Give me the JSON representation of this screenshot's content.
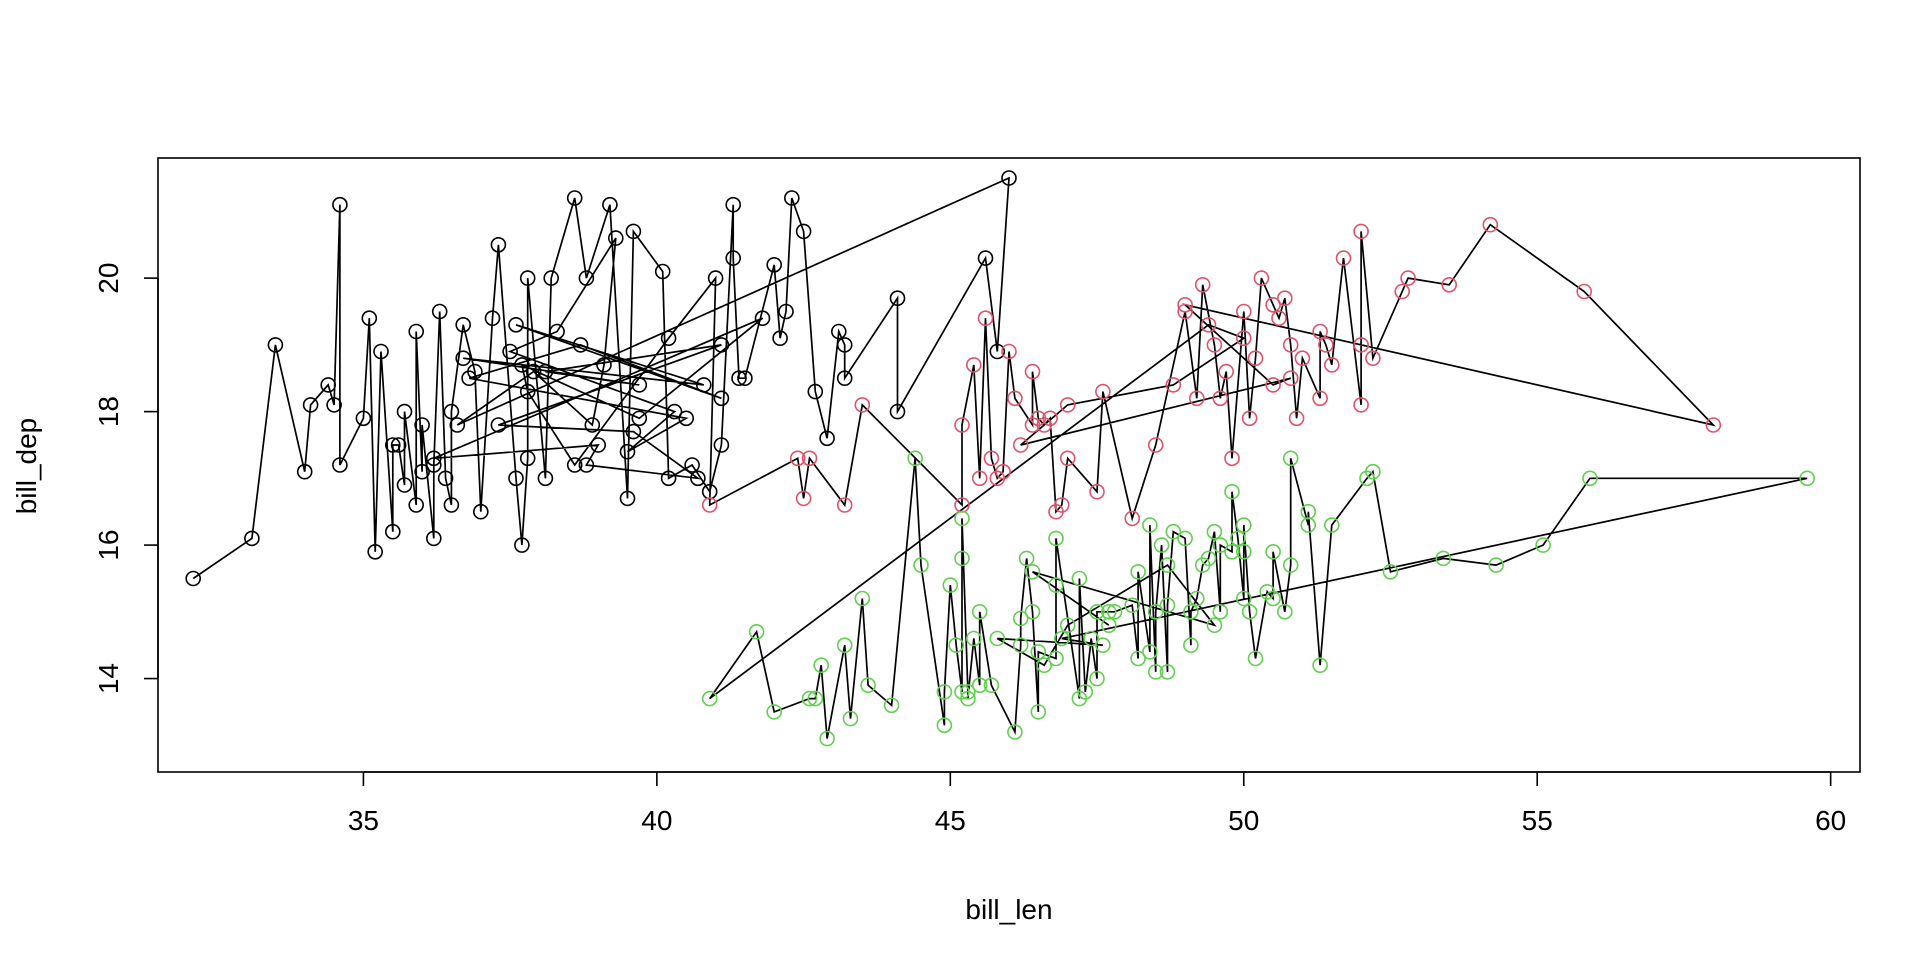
{
  "chart_data": {
    "type": "scatter",
    "title": "",
    "xlabel": "bill_len",
    "ylabel": "bill_dep",
    "xlim": [
      31.5,
      60.5
    ],
    "ylim": [
      12.6,
      21.8
    ],
    "x_ticks": [
      35,
      40,
      45,
      50,
      55,
      60
    ],
    "y_ticks": [
      14,
      16,
      18,
      20
    ],
    "grid": false,
    "legend": "none",
    "connect_points_in_order": true,
    "line_color": "#000000",
    "series": [
      {
        "color": "#000000",
        "points": [
          [
            32.1,
            15.5
          ],
          [
            33.1,
            16.1
          ],
          [
            33.5,
            19.0
          ],
          [
            34.0,
            17.1
          ],
          [
            34.1,
            18.1
          ],
          [
            34.4,
            18.4
          ],
          [
            34.5,
            18.1
          ],
          [
            34.6,
            21.1
          ],
          [
            34.6,
            17.2
          ],
          [
            35.0,
            17.9
          ],
          [
            35.1,
            19.4
          ],
          [
            35.2,
            15.9
          ],
          [
            35.3,
            18.9
          ],
          [
            35.5,
            16.2
          ],
          [
            35.5,
            17.5
          ],
          [
            35.6,
            17.5
          ],
          [
            35.7,
            16.9
          ],
          [
            35.7,
            18.0
          ],
          [
            35.9,
            16.6
          ],
          [
            35.9,
            19.2
          ],
          [
            36.0,
            17.1
          ],
          [
            36.0,
            17.8
          ],
          [
            36.2,
            16.1
          ],
          [
            36.2,
            17.2
          ],
          [
            36.3,
            19.5
          ],
          [
            36.4,
            17.0
          ],
          [
            36.5,
            16.6
          ],
          [
            36.5,
            18.0
          ],
          [
            36.7,
            19.3
          ],
          [
            36.9,
            18.6
          ],
          [
            37.0,
            16.5
          ],
          [
            37.2,
            19.4
          ],
          [
            37.3,
            20.5
          ],
          [
            37.6,
            17.0
          ],
          [
            37.7,
            16.0
          ],
          [
            37.8,
            17.3
          ],
          [
            37.8,
            20.0
          ],
          [
            38.1,
            17.0
          ],
          [
            38.2,
            20.0
          ],
          [
            38.6,
            21.2
          ],
          [
            38.8,
            20.0
          ],
          [
            39.2,
            21.1
          ],
          [
            39.5,
            16.7
          ],
          [
            39.6,
            20.7
          ],
          [
            40.1,
            20.1
          ],
          [
            40.2,
            17.0
          ],
          [
            40.6,
            17.2
          ],
          [
            40.9,
            16.8
          ],
          [
            41.1,
            17.5
          ],
          [
            41.3,
            21.1
          ],
          [
            41.3,
            20.3
          ],
          [
            41.4,
            18.5
          ],
          [
            41.5,
            18.5
          ],
          [
            42.0,
            20.2
          ],
          [
            42.1,
            19.1
          ],
          [
            42.2,
            19.5
          ],
          [
            42.3,
            21.2
          ],
          [
            42.5,
            20.7
          ],
          [
            42.7,
            18.3
          ],
          [
            42.9,
            17.6
          ],
          [
            43.1,
            19.2
          ],
          [
            43.2,
            19.0
          ],
          [
            43.2,
            18.5
          ],
          [
            44.1,
            19.7
          ],
          [
            44.1,
            18.0
          ],
          [
            45.6,
            20.3
          ],
          [
            45.8,
            18.9
          ],
          [
            46.0,
            21.5
          ],
          [
            36.6,
            17.8
          ],
          [
            37.9,
            18.6
          ],
          [
            38.9,
            17.8
          ],
          [
            39.1,
            18.7
          ],
          [
            39.3,
            20.6
          ],
          [
            38.3,
            19.2
          ],
          [
            37.5,
            18.9
          ],
          [
            40.3,
            18.0
          ],
          [
            39.5,
            17.4
          ],
          [
            40.5,
            17.9
          ],
          [
            36.8,
            18.5
          ],
          [
            38.7,
            19.0
          ],
          [
            41.1,
            18.2
          ],
          [
            37.6,
            19.3
          ],
          [
            40.8,
            18.4
          ],
          [
            36.7,
            18.8
          ],
          [
            39.7,
            18.4
          ],
          [
            38.1,
            18.6
          ],
          [
            41.1,
            19.0
          ],
          [
            37.3,
            17.8
          ],
          [
            39.6,
            17.7
          ],
          [
            40.7,
            17.0
          ],
          [
            38.8,
            17.2
          ],
          [
            39.0,
            17.5
          ],
          [
            36.2,
            17.3
          ],
          [
            41.8,
            19.4
          ],
          [
            39.7,
            17.9
          ],
          [
            37.7,
            18.7
          ],
          [
            37.8,
            18.3
          ],
          [
            38.6,
            17.2
          ],
          [
            40.2,
            19.1
          ],
          [
            41.0,
            20.0
          ]
        ]
      },
      {
        "color": "#DF536B",
        "points": [
          [
            40.9,
            16.6
          ],
          [
            42.4,
            17.3
          ],
          [
            42.5,
            16.7
          ],
          [
            42.6,
            17.3
          ],
          [
            43.2,
            16.6
          ],
          [
            43.5,
            18.1
          ],
          [
            45.2,
            16.6
          ],
          [
            45.2,
            17.8
          ],
          [
            45.4,
            18.7
          ],
          [
            45.5,
            17.0
          ],
          [
            45.6,
            19.4
          ],
          [
            45.7,
            17.3
          ],
          [
            45.8,
            17.0
          ],
          [
            45.9,
            17.1
          ],
          [
            46.0,
            18.9
          ],
          [
            46.1,
            18.2
          ],
          [
            46.4,
            17.8
          ],
          [
            46.4,
            18.6
          ],
          [
            46.5,
            17.9
          ],
          [
            46.6,
            17.8
          ],
          [
            46.7,
            17.9
          ],
          [
            46.8,
            16.5
          ],
          [
            46.9,
            16.6
          ],
          [
            47.0,
            17.3
          ],
          [
            47.5,
            16.8
          ],
          [
            47.6,
            18.3
          ],
          [
            48.1,
            16.4
          ],
          [
            48.5,
            17.5
          ],
          [
            49.0,
            19.5
          ],
          [
            49.2,
            18.2
          ],
          [
            49.3,
            19.9
          ],
          [
            49.5,
            19.0
          ],
          [
            49.6,
            18.2
          ],
          [
            49.7,
            18.6
          ],
          [
            49.8,
            17.3
          ],
          [
            50.0,
            19.5
          ],
          [
            50.1,
            17.9
          ],
          [
            50.2,
            18.8
          ],
          [
            50.3,
            20.0
          ],
          [
            50.5,
            19.6
          ],
          [
            50.6,
            19.4
          ],
          [
            50.7,
            19.7
          ],
          [
            50.8,
            19.0
          ],
          [
            50.9,
            17.9
          ],
          [
            51.0,
            18.8
          ],
          [
            51.3,
            18.2
          ],
          [
            51.3,
            19.2
          ],
          [
            51.4,
            19.0
          ],
          [
            51.5,
            18.7
          ],
          [
            51.7,
            20.3
          ],
          [
            52.0,
            18.1
          ],
          [
            52.0,
            19.0
          ],
          [
            52.0,
            20.7
          ],
          [
            52.2,
            18.8
          ],
          [
            52.7,
            19.8
          ],
          [
            52.8,
            20.0
          ],
          [
            53.5,
            19.9
          ],
          [
            54.2,
            20.8
          ],
          [
            55.8,
            19.8
          ],
          [
            58.0,
            17.8
          ],
          [
            49.0,
            19.6
          ],
          [
            50.5,
            18.4
          ],
          [
            50.8,
            18.5
          ],
          [
            46.2,
            17.5
          ],
          [
            47.0,
            18.1
          ],
          [
            48.8,
            18.4
          ],
          [
            50.0,
            19.1
          ],
          [
            49.4,
            19.3
          ]
        ]
      },
      {
        "color": "#61D04F",
        "points": [
          [
            40.9,
            13.7
          ],
          [
            41.7,
            14.7
          ],
          [
            42.0,
            13.5
          ],
          [
            42.6,
            13.7
          ],
          [
            42.7,
            13.7
          ],
          [
            42.8,
            14.2
          ],
          [
            42.9,
            13.1
          ],
          [
            43.2,
            14.5
          ],
          [
            43.3,
            13.4
          ],
          [
            43.5,
            15.2
          ],
          [
            43.6,
            13.9
          ],
          [
            44.0,
            13.6
          ],
          [
            44.4,
            17.3
          ],
          [
            44.5,
            15.7
          ],
          [
            44.9,
            13.3
          ],
          [
            44.9,
            13.8
          ],
          [
            45.0,
            15.4
          ],
          [
            45.1,
            14.5
          ],
          [
            45.2,
            13.8
          ],
          [
            45.2,
            15.8
          ],
          [
            45.2,
            16.4
          ],
          [
            45.3,
            13.8
          ],
          [
            45.3,
            13.7
          ],
          [
            45.4,
            14.6
          ],
          [
            45.5,
            13.9
          ],
          [
            45.5,
            15.0
          ],
          [
            45.7,
            13.9
          ],
          [
            46.1,
            13.2
          ],
          [
            46.2,
            14.5
          ],
          [
            46.2,
            14.9
          ],
          [
            46.3,
            15.8
          ],
          [
            46.4,
            15.0
          ],
          [
            46.5,
            13.5
          ],
          [
            46.5,
            14.4
          ],
          [
            46.8,
            14.3
          ],
          [
            46.8,
            15.4
          ],
          [
            46.8,
            16.1
          ],
          [
            47.2,
            13.7
          ],
          [
            47.2,
            15.5
          ],
          [
            47.3,
            13.8
          ],
          [
            47.4,
            14.6
          ],
          [
            47.5,
            14.0
          ],
          [
            47.5,
            15.0
          ],
          [
            47.7,
            15.0
          ],
          [
            47.8,
            15.0
          ],
          [
            48.1,
            15.1
          ],
          [
            48.2,
            14.3
          ],
          [
            48.2,
            15.6
          ],
          [
            48.4,
            14.4
          ],
          [
            48.4,
            16.3
          ],
          [
            48.5,
            14.1
          ],
          [
            48.5,
            15.0
          ],
          [
            48.6,
            16.0
          ],
          [
            48.7,
            14.1
          ],
          [
            48.7,
            15.1
          ],
          [
            48.8,
            16.2
          ],
          [
            49.0,
            16.1
          ],
          [
            49.1,
            14.5
          ],
          [
            49.1,
            15.0
          ],
          [
            49.2,
            15.2
          ],
          [
            49.3,
            15.7
          ],
          [
            49.4,
            15.8
          ],
          [
            49.5,
            16.2
          ],
          [
            49.6,
            15.0
          ],
          [
            49.6,
            16.0
          ],
          [
            49.8,
            15.9
          ],
          [
            49.8,
            16.8
          ],
          [
            49.9,
            16.1
          ],
          [
            50.0,
            15.2
          ],
          [
            50.0,
            15.9
          ],
          [
            50.0,
            16.3
          ],
          [
            50.1,
            15.0
          ],
          [
            50.2,
            14.3
          ],
          [
            50.4,
            15.3
          ],
          [
            50.5,
            15.2
          ],
          [
            50.5,
            15.9
          ],
          [
            50.7,
            15.0
          ],
          [
            50.8,
            15.7
          ],
          [
            50.8,
            17.3
          ],
          [
            51.1,
            16.3
          ],
          [
            51.1,
            16.5
          ],
          [
            51.3,
            14.2
          ],
          [
            51.5,
            16.3
          ],
          [
            52.1,
            17.0
          ],
          [
            52.2,
            17.1
          ],
          [
            52.5,
            15.6
          ],
          [
            53.4,
            15.8
          ],
          [
            54.3,
            15.7
          ],
          [
            55.1,
            16.0
          ],
          [
            55.9,
            17.0
          ],
          [
            59.6,
            17.0
          ],
          [
            46.9,
            14.6
          ],
          [
            47.6,
            14.5
          ],
          [
            45.8,
            14.6
          ],
          [
            46.6,
            14.2
          ],
          [
            47.0,
            14.8
          ],
          [
            48.7,
            15.7
          ],
          [
            49.5,
            14.8
          ],
          [
            46.4,
            15.6
          ],
          [
            47.7,
            14.8
          ]
        ]
      }
    ]
  }
}
